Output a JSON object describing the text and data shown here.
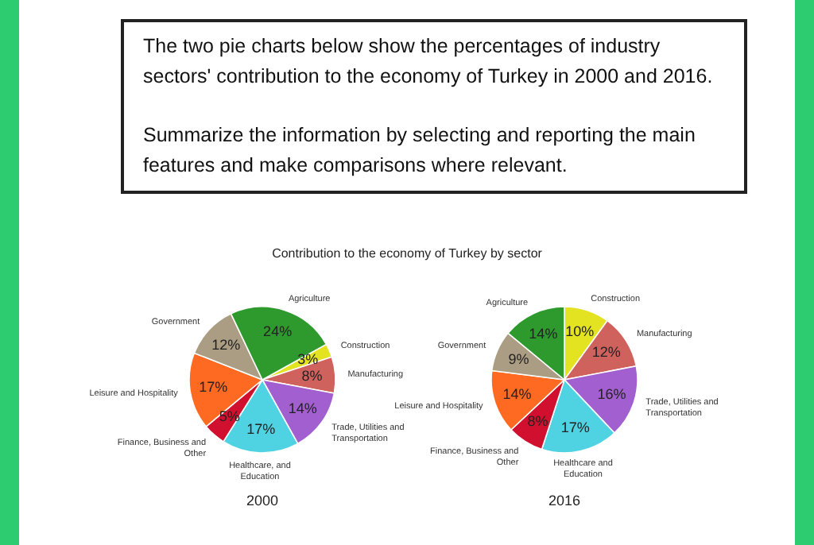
{
  "chart_data": [
    {
      "type": "other",
      "annotations": [
        "The two pie charts below show the percentages of industry sectors' contribution to the economy of Turkey in 2000 and 2016.",
        "Summarize the information by selecting and reporting the main features and make comparisons where relevant."
      ]
    },
    {
      "type": "pie",
      "title": "Contribution to the economy of Turkey by sector",
      "subtitle": "2000",
      "categories": [
        "Construction",
        "Manufacturing",
        "Trade, Utilities and Transportation",
        "Healthcare, and Education",
        "Finance, Business and Other",
        "Leisure and Hospitality",
        "Government",
        "Agriculture"
      ],
      "values": [
        3,
        8,
        14,
        17,
        5,
        17,
        12,
        24
      ],
      "value_labels": [
        "3%",
        "8%",
        "14%",
        "17%",
        "5%",
        "17%",
        "12%",
        "24%"
      ],
      "colors": [
        "#e3e322",
        "#d0625e",
        "#a25fcf",
        "#4fd3e3",
        "#d0102e",
        "#ff6a22",
        "#ab9d83",
        "#2e9a2e"
      ]
    },
    {
      "type": "pie",
      "subtitle": "2016",
      "categories": [
        "Construction",
        "Manufacturing",
        "Trade, Utilities and Transportation",
        "Healthcare and Education",
        "Finance, Business and Other",
        "Leisure and Hospitality",
        "Government",
        "Agriculture"
      ],
      "values": [
        10,
        12,
        16,
        17,
        8,
        14,
        9,
        14
      ],
      "value_labels": [
        "10%",
        "12%",
        "16%",
        "17%",
        "8%",
        "14%",
        "9%",
        "14%"
      ],
      "colors": [
        "#e3e322",
        "#d0625e",
        "#a25fcf",
        "#4fd3e3",
        "#d0102e",
        "#ff6a22",
        "#ab9d83",
        "#2e9a2e"
      ]
    }
  ]
}
